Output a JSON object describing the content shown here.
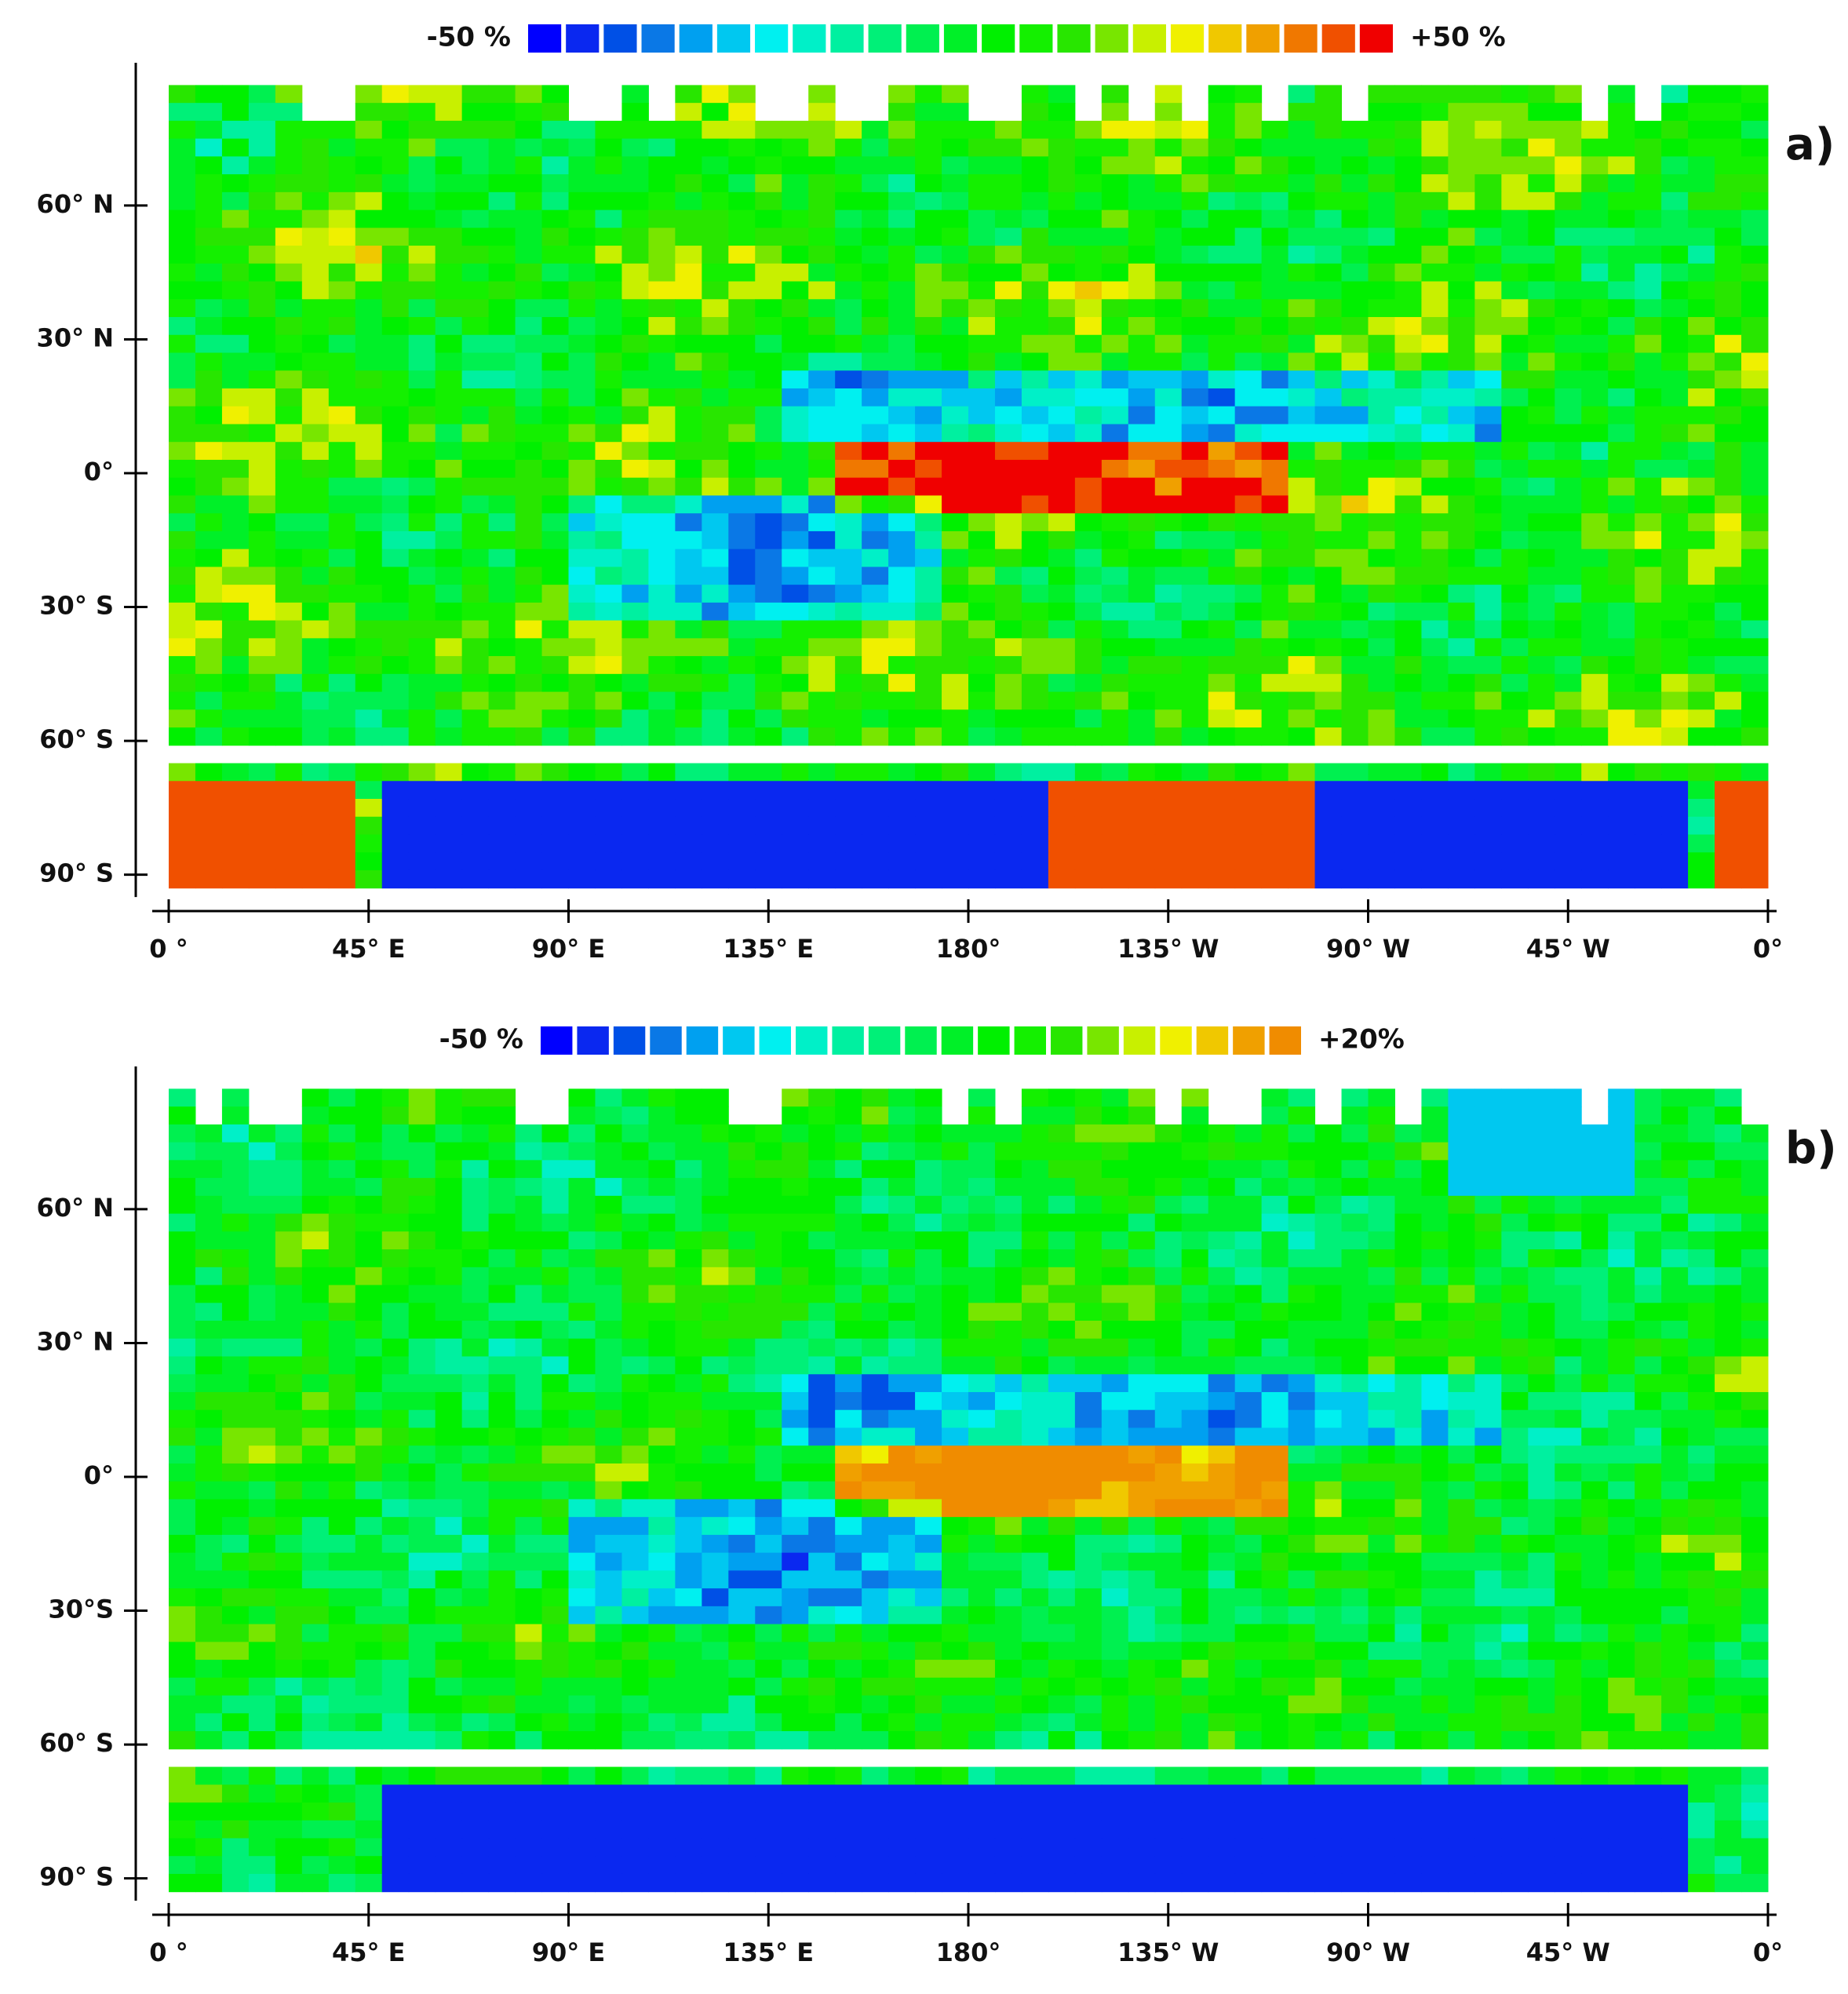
{
  "panels": [
    {
      "label": "a)",
      "colorbar": {
        "min_label": "-50 %",
        "max_label": "+50 %",
        "colors": [
          "#0000ff",
          "#0a28f0",
          "#0050e6",
          "#0a78e6",
          "#00a0f0",
          "#00c8f0",
          "#00f0f0",
          "#00f0c8",
          "#00f0a0",
          "#00f078",
          "#00f050",
          "#00f028",
          "#00f000",
          "#14f000",
          "#28e600",
          "#78e600",
          "#c8f000",
          "#f0f000",
          "#f0c800",
          "#f0a000",
          "#f07800",
          "#f05000",
          "#f00000"
        ]
      },
      "y_axis_labels": [
        "60° N",
        "30° N",
        "0°",
        "30° S",
        "60° S",
        "90° S"
      ],
      "x_axis_labels": [
        "0 °",
        "45° E",
        "90° E",
        "135° E",
        "180°",
        "135° W",
        "90° W",
        "45° W",
        "0°"
      ]
    },
    {
      "label": "b)",
      "colorbar": {
        "min_label": "-50 %",
        "max_label": "+20%",
        "colors": [
          "#0000ff",
          "#0a28f0",
          "#0050e6",
          "#0a78e6",
          "#00a0f0",
          "#00c8f0",
          "#00f0f0",
          "#00f0c8",
          "#00f0a0",
          "#00f078",
          "#00f050",
          "#00f028",
          "#00f000",
          "#14f000",
          "#28e600",
          "#78e600",
          "#c8f000",
          "#f0f000",
          "#f0c800",
          "#f0a000",
          "#f08c00"
        ]
      },
      "y_axis_labels": [
        "60° N",
        "30° N",
        "0°",
        "30°S",
        "60° S",
        "90° S"
      ],
      "x_axis_labels": [
        "0 °",
        "45° E",
        "90° E",
        "135° E",
        "180°",
        "135° W",
        "90° W",
        "45° W",
        "0°"
      ]
    }
  ]
}
